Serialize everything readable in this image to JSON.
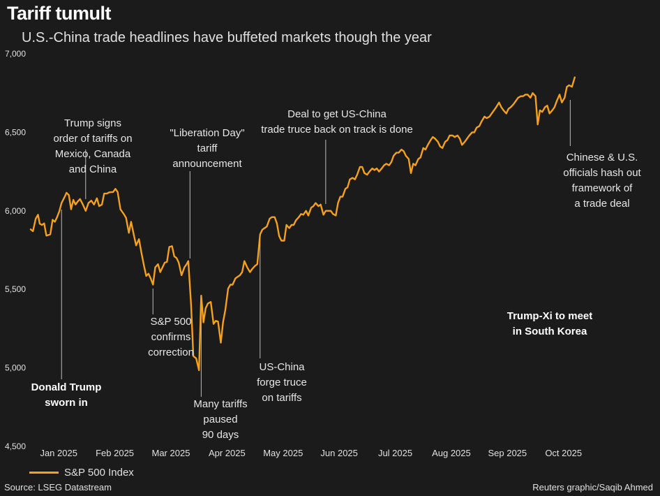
{
  "header": {
    "title": "Tariff tumult",
    "subtitle": "U.S.-China trade headlines have buffeted markets though the year"
  },
  "legend": {
    "label": "S&P 500 Index",
    "color": "#f5a11c"
  },
  "footer": {
    "source": "Source: LSEG Datastream",
    "credit": "Reuters graphic/Saqib Ahmed"
  },
  "chart_data": {
    "type": "line",
    "title": "Tariff tumult",
    "ylim": [
      4500,
      7000
    ],
    "yticks": [
      4500,
      5000,
      5500,
      6000,
      6500,
      7000
    ],
    "ytick_labels": [
      "4,500",
      "5,000",
      "5,500",
      "6,000",
      "6,500",
      "7,000"
    ],
    "xlim": [
      0,
      10.25
    ],
    "xticks": [
      {
        "label": "Jan 2025",
        "x": 0.5
      },
      {
        "label": "Feb 2025",
        "x": 1.5
      },
      {
        "label": "Mar 2025",
        "x": 2.5
      },
      {
        "label": "Apr 2025",
        "x": 3.5
      },
      {
        "label": "May 2025",
        "x": 4.5
      },
      {
        "label": "Jun 2025",
        "x": 5.5
      },
      {
        "label": "Jul 2025",
        "x": 6.5
      },
      {
        "label": "Aug 2025",
        "x": 7.5
      },
      {
        "label": "Sep 2025",
        "x": 8.5
      },
      {
        "label": "Oct 2025",
        "x": 9.5
      }
    ],
    "series": [
      {
        "name": "S&P 500 Index",
        "color": "#f5a11c",
        "points": [
          [
            0.0,
            5882
          ],
          [
            0.04,
            5870
          ],
          [
            0.09,
            5950
          ],
          [
            0.13,
            5975
          ],
          [
            0.16,
            5918
          ],
          [
            0.2,
            5910
          ],
          [
            0.24,
            5920
          ],
          [
            0.28,
            5842
          ],
          [
            0.35,
            5850
          ],
          [
            0.39,
            5943
          ],
          [
            0.43,
            5930
          ],
          [
            0.47,
            5960
          ],
          [
            0.51,
            5997
          ],
          [
            0.55,
            6050
          ],
          [
            0.6,
            6085
          ],
          [
            0.64,
            6115
          ],
          [
            0.68,
            6100
          ],
          [
            0.72,
            6010
          ],
          [
            0.76,
            6070
          ],
          [
            0.8,
            6040
          ],
          [
            0.84,
            6060
          ],
          [
            0.88,
            6075
          ],
          [
            0.93,
            6040
          ],
          [
            0.98,
            6000
          ],
          [
            1.03,
            6050
          ],
          [
            1.08,
            6065
          ],
          [
            1.13,
            6040
          ],
          [
            1.18,
            6080
          ],
          [
            1.22,
            6030
          ],
          [
            1.27,
            6040
          ],
          [
            1.31,
            6110
          ],
          [
            1.36,
            6110
          ],
          [
            1.4,
            6118
          ],
          [
            1.47,
            6120
          ],
          [
            1.51,
            6140
          ],
          [
            1.55,
            6120
          ],
          [
            1.6,
            6010
          ],
          [
            1.66,
            5980
          ],
          [
            1.7,
            5955
          ],
          [
            1.75,
            5860
          ],
          [
            1.79,
            5930
          ],
          [
            1.84,
            5845
          ],
          [
            1.88,
            5780
          ],
          [
            1.93,
            5820
          ],
          [
            1.97,
            5740
          ],
          [
            2.02,
            5650
          ],
          [
            2.06,
            5585
          ],
          [
            2.1,
            5600
          ],
          [
            2.14,
            5570
          ],
          [
            2.18,
            5530
          ],
          [
            2.22,
            5640
          ],
          [
            2.27,
            5660
          ],
          [
            2.31,
            5610
          ],
          [
            2.35,
            5640
          ],
          [
            2.39,
            5670
          ],
          [
            2.43,
            5675
          ],
          [
            2.47,
            5770
          ],
          [
            2.52,
            5775
          ],
          [
            2.56,
            5710
          ],
          [
            2.6,
            5700
          ],
          [
            2.64,
            5670
          ],
          [
            2.69,
            5590
          ],
          [
            2.74,
            5640
          ],
          [
            2.78,
            5660
          ],
          [
            2.81,
            5680
          ],
          [
            2.86,
            5400
          ],
          [
            2.9,
            5075
          ],
          [
            2.95,
            5060
          ],
          [
            3.0,
            4985
          ],
          [
            3.04,
            5460
          ],
          [
            3.08,
            5290
          ],
          [
            3.12,
            5380
          ],
          [
            3.16,
            5410
          ],
          [
            3.21,
            5420
          ],
          [
            3.26,
            5280
          ],
          [
            3.3,
            5300
          ],
          [
            3.34,
            5295
          ],
          [
            3.39,
            5160
          ],
          [
            3.43,
            5290
          ],
          [
            3.47,
            5370
          ],
          [
            3.52,
            5505
          ],
          [
            3.56,
            5530
          ],
          [
            3.6,
            5530
          ],
          [
            3.65,
            5570
          ],
          [
            3.69,
            5580
          ],
          [
            3.73,
            5590
          ],
          [
            3.77,
            5610
          ],
          [
            3.81,
            5680
          ],
          [
            3.86,
            5640
          ],
          [
            3.91,
            5610
          ],
          [
            3.95,
            5630
          ],
          [
            4.0,
            5650
          ],
          [
            4.04,
            5660
          ],
          [
            4.09,
            5850
          ],
          [
            4.13,
            5880
          ],
          [
            4.17,
            5890
          ],
          [
            4.21,
            5900
          ],
          [
            4.26,
            5950
          ],
          [
            4.3,
            5960
          ],
          [
            4.35,
            5960
          ],
          [
            4.39,
            5920
          ],
          [
            4.43,
            5840
          ],
          [
            4.47,
            5810
          ],
          [
            4.52,
            5810
          ],
          [
            4.56,
            5910
          ],
          [
            4.61,
            5890
          ],
          [
            4.65,
            5910
          ],
          [
            4.69,
            5910
          ],
          [
            4.73,
            5940
          ],
          [
            4.78,
            5960
          ],
          [
            4.82,
            5980
          ],
          [
            4.86,
            5975
          ],
          [
            4.91,
            6000
          ],
          [
            4.95,
            5970
          ],
          [
            5.0,
            6020
          ],
          [
            5.04,
            6030
          ],
          [
            5.08,
            6050
          ],
          [
            5.13,
            6030
          ],
          [
            5.17,
            6040
          ],
          [
            5.22,
            5975
          ],
          [
            5.26,
            6000
          ],
          [
            5.3,
            6000
          ],
          [
            5.35,
            6000
          ],
          [
            5.39,
            5980
          ],
          [
            5.44,
            5970
          ],
          [
            5.48,
            6050
          ],
          [
            5.52,
            6090
          ],
          [
            5.56,
            6090
          ],
          [
            5.61,
            6140
          ],
          [
            5.65,
            6150
          ],
          [
            5.69,
            6200
          ],
          [
            5.74,
            6210
          ],
          [
            5.78,
            6200
          ],
          [
            5.82,
            6230
          ],
          [
            5.87,
            6280
          ],
          [
            5.91,
            6280
          ],
          [
            5.95,
            6240
          ],
          [
            6.0,
            6230
          ],
          [
            6.04,
            6250
          ],
          [
            6.09,
            6270
          ],
          [
            6.13,
            6260
          ],
          [
            6.17,
            6270
          ],
          [
            6.21,
            6250
          ],
          [
            6.26,
            6270
          ],
          [
            6.3,
            6290
          ],
          [
            6.34,
            6300
          ],
          [
            6.39,
            6290
          ],
          [
            6.43,
            6310
          ],
          [
            6.47,
            6350
          ],
          [
            6.52,
            6370
          ],
          [
            6.56,
            6370
          ],
          [
            6.61,
            6390
          ],
          [
            6.65,
            6380
          ],
          [
            6.69,
            6350
          ],
          [
            6.74,
            6330
          ],
          [
            6.78,
            6240
          ],
          [
            6.82,
            6300
          ],
          [
            6.86,
            6290
          ],
          [
            6.91,
            6330
          ],
          [
            6.95,
            6340
          ],
          [
            7.0,
            6400
          ],
          [
            7.04,
            6390
          ],
          [
            7.08,
            6420
          ],
          [
            7.13,
            6450
          ],
          [
            7.17,
            6470
          ],
          [
            7.21,
            6460
          ],
          [
            7.26,
            6440
          ],
          [
            7.3,
            6410
          ],
          [
            7.34,
            6400
          ],
          [
            7.39,
            6440
          ],
          [
            7.43,
            6450
          ],
          [
            7.47,
            6480
          ],
          [
            7.52,
            6480
          ],
          [
            7.56,
            6470
          ],
          [
            7.61,
            6480
          ],
          [
            7.65,
            6460
          ],
          [
            7.69,
            6420
          ],
          [
            7.74,
            6440
          ],
          [
            7.78,
            6460
          ],
          [
            7.82,
            6480
          ],
          [
            7.87,
            6500
          ],
          [
            7.91,
            6500
          ],
          [
            7.95,
            6530
          ],
          [
            8.0,
            6540
          ],
          [
            8.04,
            6570
          ],
          [
            8.09,
            6600
          ],
          [
            8.13,
            6590
          ],
          [
            8.18,
            6600
          ],
          [
            8.22,
            6620
          ],
          [
            8.26,
            6640
          ],
          [
            8.3,
            6660
          ],
          [
            8.35,
            6690
          ],
          [
            8.39,
            6660
          ],
          [
            8.43,
            6640
          ],
          [
            8.48,
            6620
          ],
          [
            8.52,
            6650
          ],
          [
            8.56,
            6660
          ],
          [
            8.61,
            6680
          ],
          [
            8.65,
            6700
          ],
          [
            8.69,
            6720
          ],
          [
            8.74,
            6730
          ],
          [
            8.78,
            6730
          ],
          [
            8.82,
            6740
          ],
          [
            8.86,
            6740
          ],
          [
            8.91,
            6720
          ],
          [
            8.95,
            6750
          ],
          [
            9.0,
            6730
          ],
          [
            9.04,
            6550
          ],
          [
            9.08,
            6640
          ],
          [
            9.12,
            6630
          ],
          [
            9.17,
            6660
          ],
          [
            9.21,
            6670
          ],
          [
            9.25,
            6620
          ],
          [
            9.3,
            6640
          ],
          [
            9.34,
            6660
          ],
          [
            9.38,
            6700
          ],
          [
            9.43,
            6740
          ],
          [
            9.47,
            6690
          ],
          [
            9.52,
            6720
          ],
          [
            9.56,
            6790
          ],
          [
            9.6,
            6800
          ],
          [
            9.65,
            6790
          ],
          [
            9.7,
            6850
          ]
        ]
      }
    ],
    "annotations": [
      {
        "lines": [
          "Trump signs",
          "order of tariffs on",
          "Mexico, Canada",
          "and China"
        ],
        "bold": false,
        "x": 0.98,
        "value": 6075,
        "anchor_value": 6080
      },
      {
        "lines": [
          "\"Liberation Day\"",
          "tariff",
          "announcement"
        ],
        "bold": false,
        "x": 2.84,
        "value": 5650,
        "anchor_value": 5700
      },
      {
        "lines": [
          "S&P 500",
          "confirms",
          "correction"
        ],
        "bold": false,
        "x": 2.18,
        "value": 5530,
        "anchor_value": 5530
      },
      {
        "lines": [
          "Many tariffs",
          "paused",
          "90 days"
        ],
        "bold": false,
        "x": 3.04,
        "value": 5460,
        "anchor_value": 5460
      },
      {
        "lines": [
          "US-China",
          "forge truce",
          "on tariffs"
        ],
        "bold": false,
        "x": 4.09,
        "value": 5850,
        "anchor_value": 5850
      },
      {
        "lines": [
          "Deal to get US-China",
          "trade truce back on track is done"
        ],
        "bold": false,
        "x": 5.26,
        "value": 6030,
        "anchor_value": 6030
      },
      {
        "lines": [
          "Chinese & U.S.",
          "officials hash out",
          "framework of",
          "a trade deal"
        ],
        "bold": false,
        "x": 9.62,
        "value": 6800,
        "anchor_value": 6800
      },
      {
        "lines": [
          "Trump-Xi to meet",
          "in South Korea"
        ],
        "bold": true,
        "x": null,
        "value": null
      },
      {
        "lines": [
          "Donald Trump",
          "sworn in"
        ],
        "bold": true,
        "x": 0.55,
        "value": 6050,
        "anchor_value": 6050
      }
    ]
  }
}
